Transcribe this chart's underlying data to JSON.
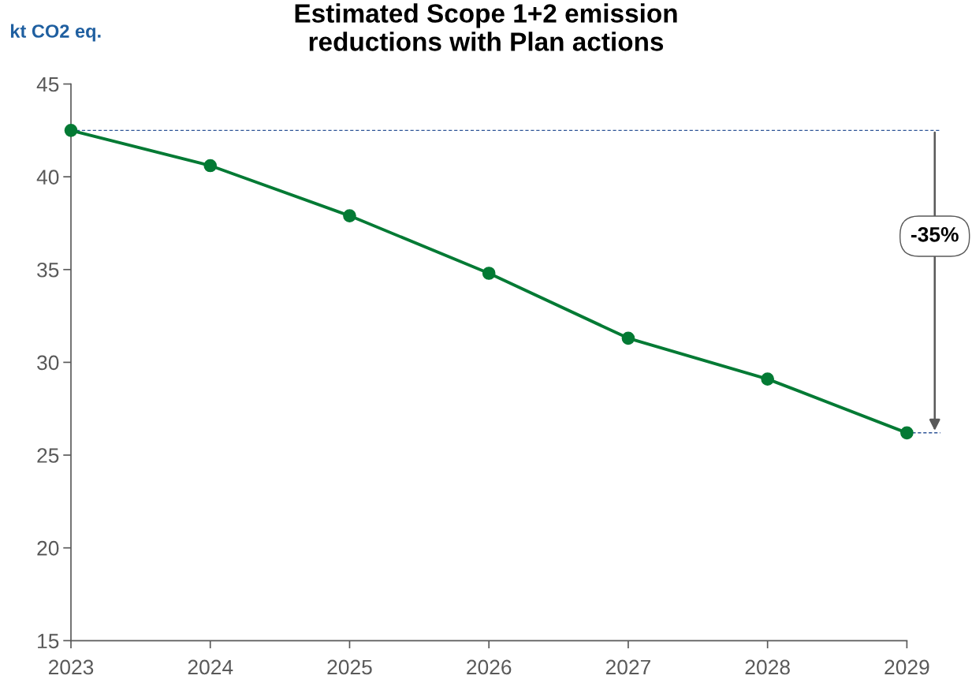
{
  "chart_data": {
    "type": "line",
    "title": "Estimated Scope 1+2 emission\nreductions with Plan actions",
    "ylabel": "kt CO2 eq.",
    "x": [
      2023,
      2024,
      2025,
      2026,
      2027,
      2028,
      2029
    ],
    "series": [
      {
        "color": "#037a34",
        "values": [
          42.5,
          40.6,
          37.9,
          34.8,
          31.3,
          29.1,
          26.2
        ]
      }
    ],
    "xlim": [
      2023,
      2029
    ],
    "xticks": [
      2023,
      2024,
      2025,
      2026,
      2027,
      2028,
      2029
    ],
    "ylim": [
      15,
      45
    ],
    "yticks": [
      15,
      20,
      25,
      30,
      35,
      40,
      45
    ],
    "grid": false,
    "legend": false,
    "marker": "circle",
    "line_style": "solid",
    "ref_lines": [
      {
        "axis": "y",
        "value": 42.5,
        "color": "#2f5597",
        "line_style": "dashed"
      }
    ],
    "annotations": [
      "-35%"
    ]
  }
}
